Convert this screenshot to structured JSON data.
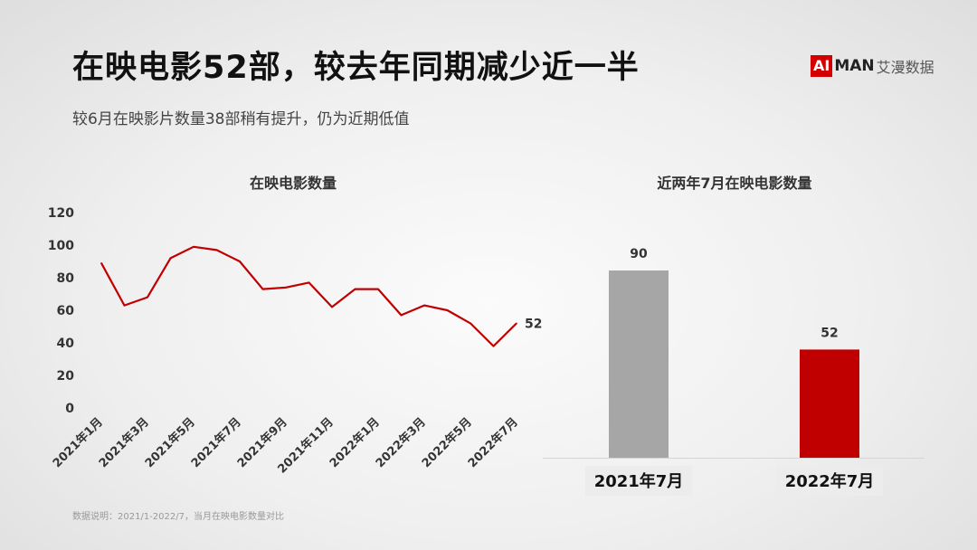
{
  "header": {
    "title": "在映电影52部，较去年同期减少近一半",
    "subtitle": "较6月在映影片数量38部稍有提升，仍为近期低值"
  },
  "logo": {
    "ai": "AI",
    "man": "MAN",
    "cn": "艾漫数据"
  },
  "footnote": "数据说明：2021/1-2022/7，当月在映电影数量对比",
  "colors": {
    "accent": "#c00000",
    "grey_bar": "#a6a6a6"
  },
  "chart_data": [
    {
      "type": "line",
      "title": "在映电影数量",
      "x": [
        "2021年1月",
        "2021年2月",
        "2021年3月",
        "2021年4月",
        "2021年5月",
        "2021年6月",
        "2021年7月",
        "2021年8月",
        "2021年9月",
        "2021年10月",
        "2021年11月",
        "2021年12月",
        "2022年1月",
        "2022年2月",
        "2022年3月",
        "2022年4月",
        "2022年5月",
        "2022年6月",
        "2022年7月"
      ],
      "tick_labels": [
        "2021年1月",
        "2021年3月",
        "2021年5月",
        "2021年7月",
        "2021年9月",
        "2021年11月",
        "2022年1月",
        "2022年3月",
        "2022年5月",
        "2022年7月"
      ],
      "values": [
        89,
        63,
        68,
        92,
        99,
        97,
        90,
        73,
        74,
        77,
        62,
        73,
        73,
        57,
        63,
        60,
        52,
        38,
        52
      ],
      "ylim": [
        0,
        120
      ],
      "yticks": [
        0,
        20,
        40,
        60,
        80,
        100,
        120
      ],
      "end_label": "52",
      "grid": false
    },
    {
      "type": "bar",
      "title": "近两年7月在映电影数量",
      "categories": [
        "2021年7月",
        "2022年7月"
      ],
      "values": [
        90,
        52
      ],
      "value_labels": [
        "90",
        "52"
      ]
    }
  ]
}
